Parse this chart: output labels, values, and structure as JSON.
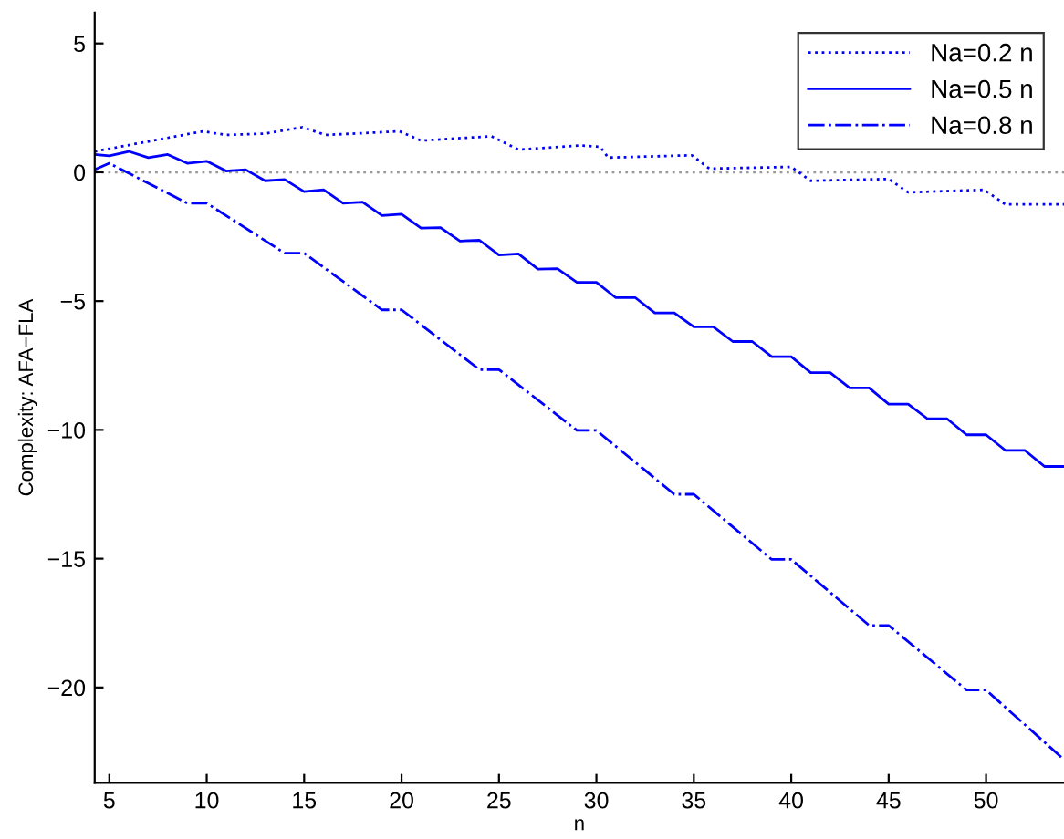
{
  "chart_data": {
    "type": "line",
    "xlabel": "n",
    "ylabel": "Complexity: AFA−FLA",
    "xlim": [
      4.25,
      54
    ],
    "ylim": [
      -23.7,
      6.2
    ],
    "xticks": [
      5,
      10,
      15,
      20,
      25,
      30,
      35,
      40,
      45,
      50
    ],
    "yticks": [
      -20,
      -15,
      -10,
      -5,
      0,
      5
    ],
    "grid": false,
    "legend": "top right",
    "ref_lines": [
      {
        "axis": "y",
        "value": 0,
        "color": "#999999",
        "line_style": "dotted"
      }
    ],
    "series": [
      {
        "name": "Na=0.2 n",
        "color": "#0000ff",
        "line_style": "dotted",
        "x": [
          4.25,
          9.8,
          11,
          13,
          14.9,
          16.1,
          19.9,
          21,
          24.6,
          26,
          29.2,
          30.2,
          30.6,
          34.9,
          35.8,
          40,
          41,
          45,
          46,
          49.9,
          51,
          54
        ],
        "values": [
          0.81,
          1.59,
          1.45,
          1.5,
          1.75,
          1.45,
          1.59,
          1.23,
          1.4,
          0.88,
          1.04,
          0.99,
          0.57,
          0.66,
          0.14,
          0.21,
          -0.33,
          -0.26,
          -0.78,
          -0.68,
          -1.25,
          -1.25
        ]
      },
      {
        "name": "Na=0.5 n",
        "color": "#0000ff",
        "line_style": "solid",
        "x": [
          4.25,
          5,
          6,
          7,
          8,
          9,
          10,
          11,
          12,
          13,
          14,
          15,
          16,
          17,
          18,
          19,
          20,
          21,
          22,
          23,
          24,
          25,
          26,
          27,
          28,
          29,
          30,
          31,
          32,
          33,
          34,
          35,
          36,
          37,
          38,
          39,
          40,
          41,
          42,
          43,
          44,
          45,
          46,
          47,
          48,
          49,
          50,
          51,
          52,
          53,
          54
        ],
        "values": [
          0.69,
          0.64,
          0.81,
          0.57,
          0.69,
          0.35,
          0.43,
          0.05,
          0.1,
          -0.33,
          -0.28,
          -0.75,
          -0.68,
          -1.2,
          -1.16,
          -1.68,
          -1.63,
          -2.17,
          -2.15,
          -2.67,
          -2.64,
          -3.21,
          -3.17,
          -3.76,
          -3.74,
          -4.27,
          -4.27,
          -4.87,
          -4.87,
          -5.46,
          -5.46,
          -6.0,
          -6.0,
          -6.57,
          -6.57,
          -7.16,
          -7.16,
          -7.78,
          -7.78,
          -8.37,
          -8.37,
          -9.0,
          -9.0,
          -9.57,
          -9.57,
          -10.19,
          -10.19,
          -10.8,
          -10.8,
          -11.42,
          -11.42
        ]
      },
      {
        "name": "Na=0.8 n",
        "color": "#0000ff",
        "line_style": "dashdot",
        "x": [
          4.25,
          5,
          9,
          10,
          14,
          15,
          19,
          20,
          24,
          25,
          29,
          30,
          34,
          35,
          39,
          40,
          44,
          45,
          49,
          50,
          54
        ],
        "values": [
          0.1,
          0.35,
          -1.2,
          -1.2,
          -3.14,
          -3.14,
          -5.34,
          -5.34,
          -7.66,
          -7.66,
          -10.02,
          -10.02,
          -12.5,
          -12.5,
          -15.03,
          -15.03,
          -17.59,
          -17.59,
          -20.1,
          -20.1,
          -22.8
        ]
      }
    ]
  }
}
